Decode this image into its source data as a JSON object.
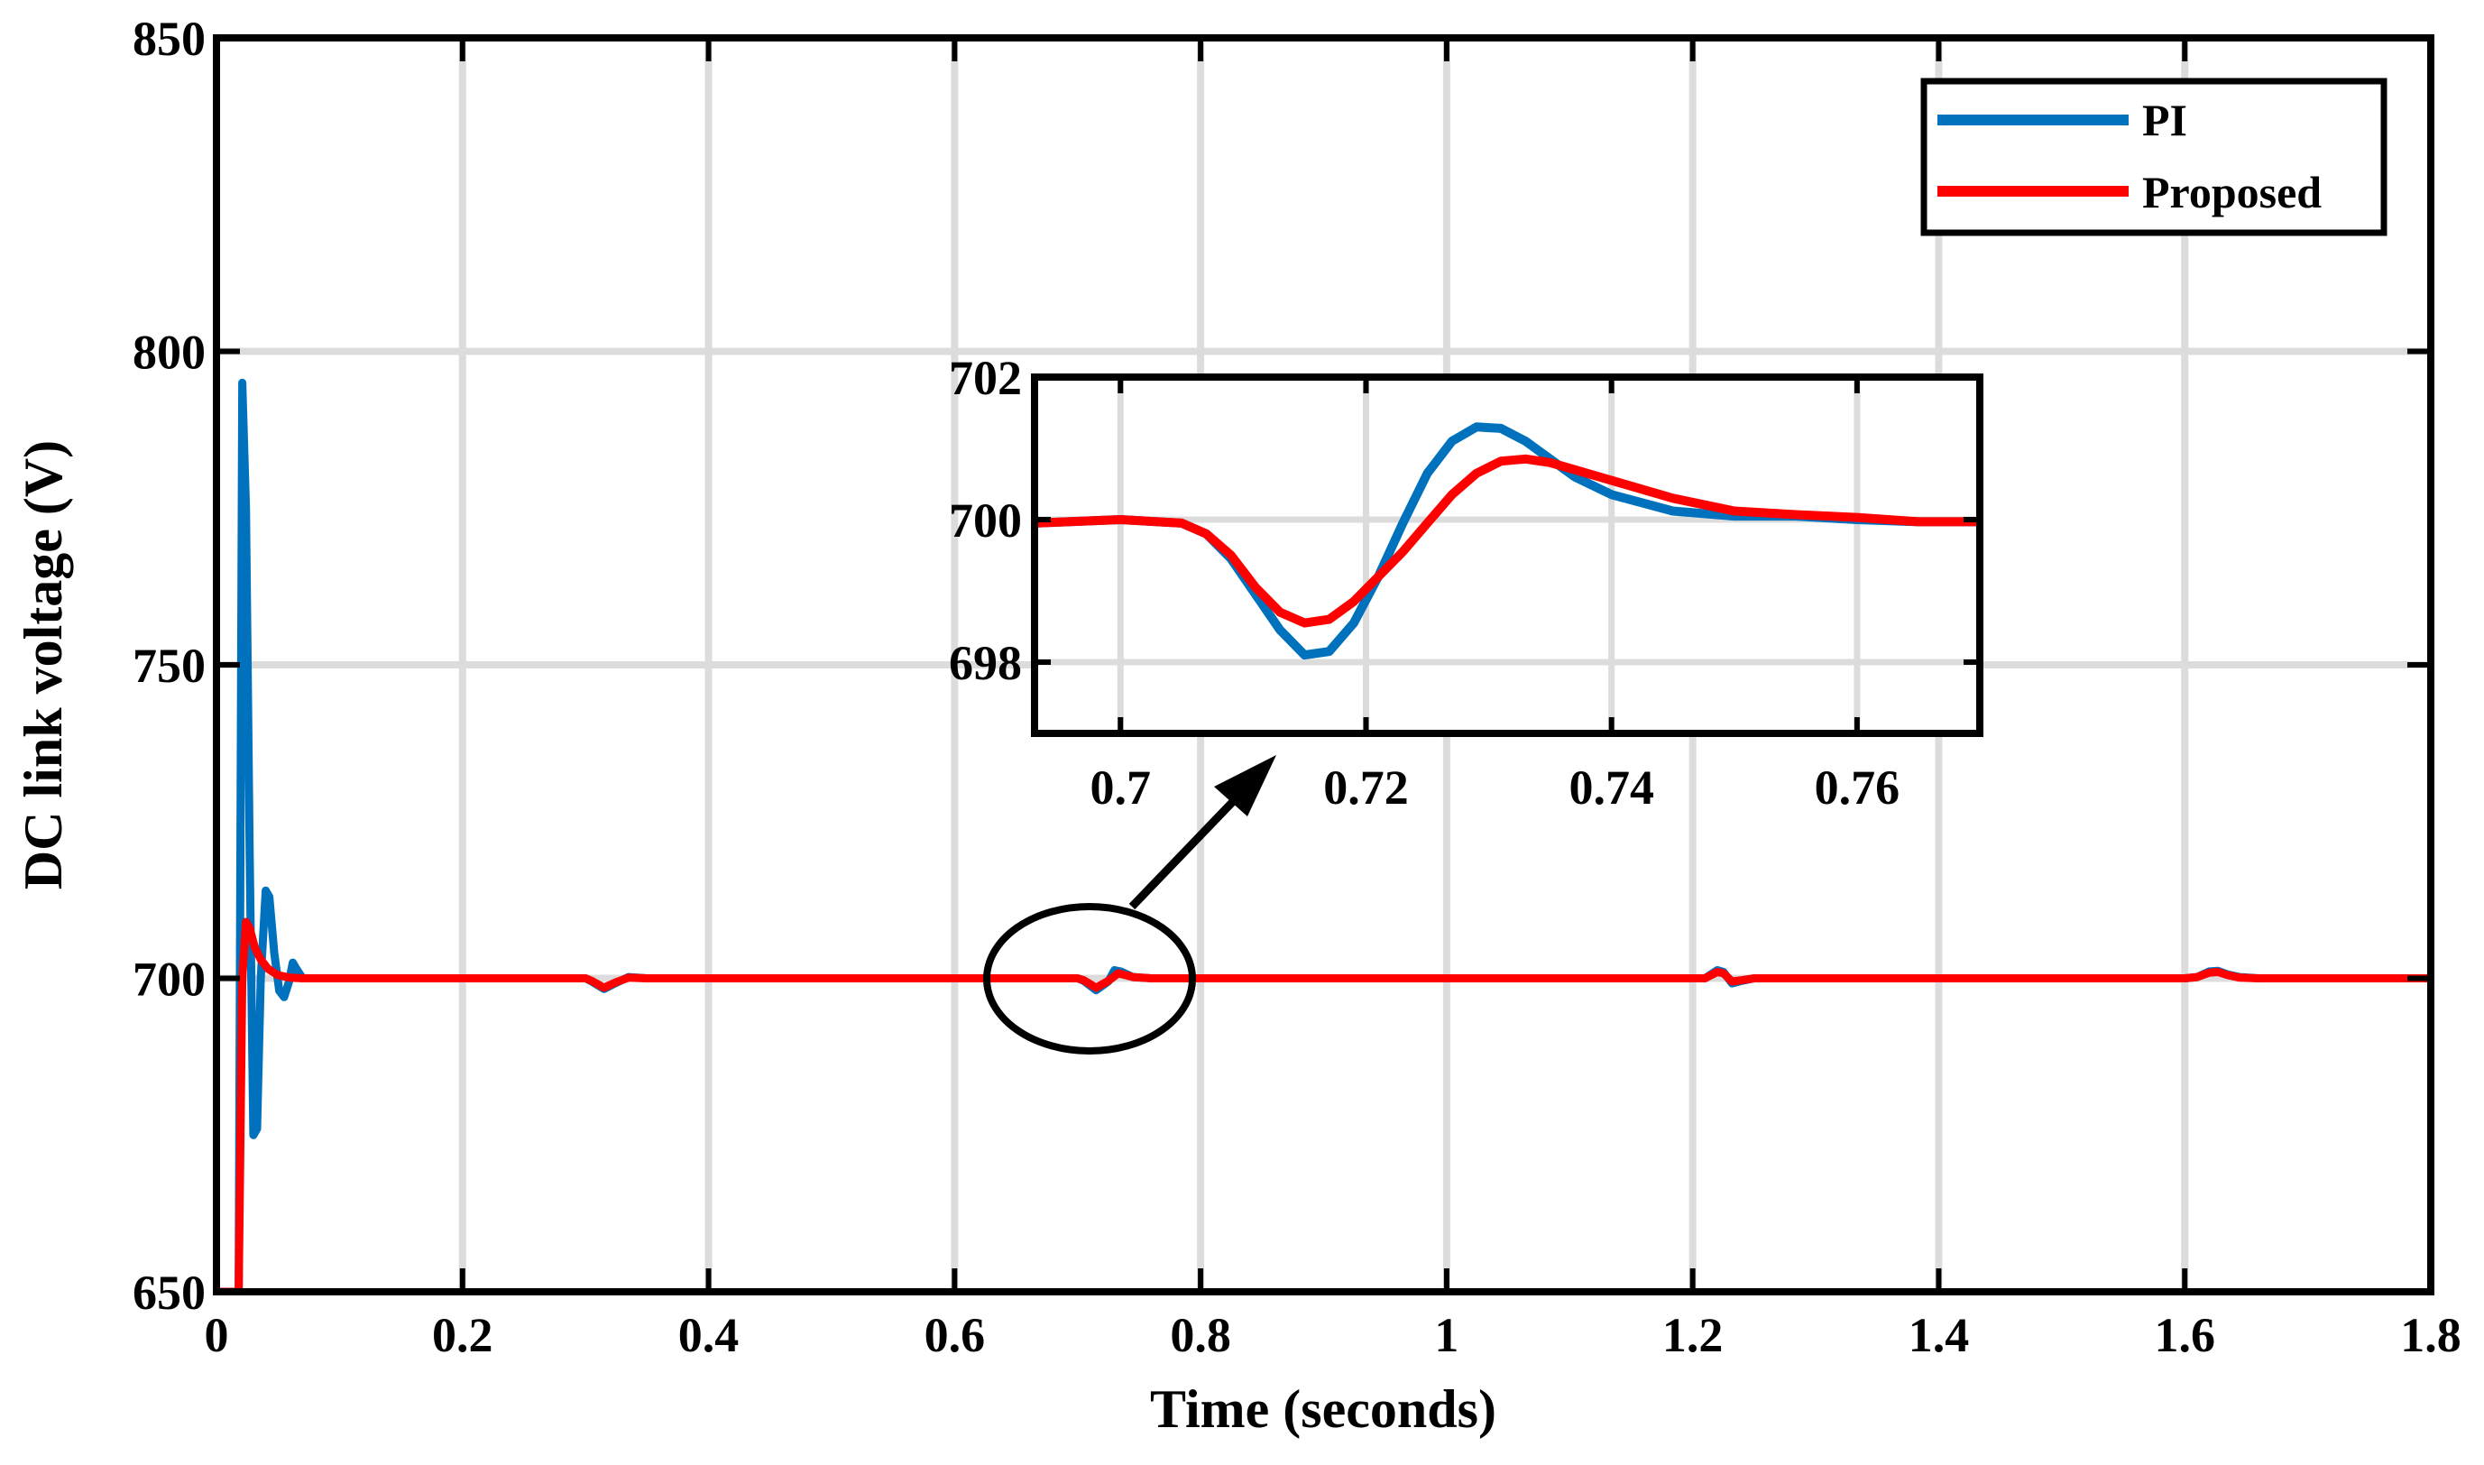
{
  "chart_data": [
    {
      "type": "line",
      "xlabel": "Time (seconds)",
      "ylabel": "DC link voltage (V)",
      "xlim": [
        0,
        1.8
      ],
      "ylim": [
        650,
        850
      ],
      "xticks": [
        0,
        0.2,
        0.4,
        0.6,
        0.8,
        1,
        1.2,
        1.4,
        1.6,
        1.8
      ],
      "xtick_labels": [
        "0",
        "0.2",
        "0.4",
        "0.6",
        "0.8",
        "1",
        "1.2",
        "1.4",
        "1.6",
        "1.8"
      ],
      "yticks": [
        650,
        700,
        750,
        800,
        850
      ],
      "ytick_labels": [
        "650",
        "700",
        "750",
        "800",
        "850"
      ],
      "grid": true,
      "legend_position": "top-right",
      "series": [
        {
          "name": "PI",
          "color": "#0072BD",
          "x": [
            0,
            0.018,
            0.021,
            0.024,
            0.027,
            0.03,
            0.033,
            0.036,
            0.04,
            0.043,
            0.047,
            0.051,
            0.055,
            0.059,
            0.062,
            0.065,
            0.07,
            0.08,
            0.3,
            0.305,
            0.315,
            0.325,
            0.335,
            0.35,
            0.7,
            0.705,
            0.715,
            0.725,
            0.73,
            0.735,
            0.745,
            0.76,
            1.21,
            1.22,
            1.225,
            1.232,
            1.24,
            1.25,
            1.6,
            1.61,
            1.62,
            1.627,
            1.635,
            1.645,
            1.66,
            1.8
          ],
          "y": [
            650,
            650,
            795,
            775,
            720,
            675,
            676,
            700,
            714,
            713,
            704,
            698,
            697,
            699.5,
            702.5,
            701.5,
            700,
            700,
            700,
            699.5,
            698.3,
            699.3,
            700.2,
            700,
            700,
            699.6,
            698.1,
            699.5,
            701.3,
            701.1,
            700.2,
            700,
            700,
            701.3,
            701.0,
            699.2,
            699.6,
            700,
            700,
            700.2,
            701.1,
            701.2,
            700.6,
            700.2,
            700,
            700
          ]
        },
        {
          "name": "Proposed",
          "color": "#FF0000",
          "x": [
            0,
            0.018,
            0.021,
            0.024,
            0.027,
            0.031,
            0.036,
            0.042,
            0.05,
            0.06,
            0.07,
            0.3,
            0.305,
            0.315,
            0.325,
            0.335,
            0.35,
            0.7,
            0.705,
            0.715,
            0.725,
            0.733,
            0.745,
            0.76,
            1.21,
            1.22,
            1.225,
            1.232,
            1.24,
            1.25,
            1.6,
            1.61,
            1.62,
            1.627,
            1.635,
            1.645,
            1.66,
            1.8
          ],
          "y": [
            650,
            650,
            700,
            709,
            708,
            705,
            703,
            701.5,
            700.5,
            700.1,
            700,
            700,
            699.6,
            698.5,
            699.4,
            700.1,
            700,
            700,
            699.7,
            698.5,
            699.6,
            700.8,
            700.2,
            700,
            700,
            701.0,
            700.8,
            699.5,
            699.7,
            700,
            700,
            700.2,
            700.9,
            701.0,
            700.5,
            700.1,
            700,
            700
          ]
        }
      ]
    },
    {
      "type": "line",
      "xlim": [
        0.693,
        0.77
      ],
      "ylim": [
        697,
        702
      ],
      "xticks": [
        0.7,
        0.72,
        0.74,
        0.76
      ],
      "xtick_labels": [
        "0.7",
        "0.72",
        "0.74",
        "0.76"
      ],
      "yticks": [
        698,
        700,
        702
      ],
      "ytick_labels": [
        "698",
        "700",
        "702"
      ],
      "grid": true,
      "series": [
        {
          "name": "PI",
          "color": "#0072BD",
          "x": [
            0.693,
            0.7,
            0.705,
            0.707,
            0.709,
            0.711,
            0.713,
            0.715,
            0.717,
            0.719,
            0.721,
            0.723,
            0.725,
            0.727,
            0.729,
            0.731,
            0.733,
            0.735,
            0.737,
            0.74,
            0.745,
            0.75,
            0.755,
            0.76,
            0.765,
            0.77
          ],
          "y": [
            699.95,
            700.0,
            699.95,
            699.8,
            699.45,
            698.95,
            698.45,
            698.1,
            698.15,
            698.55,
            699.2,
            699.95,
            700.65,
            701.1,
            701.3,
            701.28,
            701.1,
            700.85,
            700.6,
            700.35,
            700.12,
            700.05,
            700.05,
            700.0,
            699.97,
            699.97
          ]
        },
        {
          "name": "Proposed",
          "color": "#FF0000",
          "x": [
            0.693,
            0.7,
            0.705,
            0.707,
            0.709,
            0.711,
            0.713,
            0.715,
            0.717,
            0.719,
            0.721,
            0.723,
            0.725,
            0.727,
            0.729,
            0.731,
            0.733,
            0.735,
            0.737,
            0.74,
            0.745,
            0.75,
            0.755,
            0.76,
            0.765,
            0.77
          ],
          "y": [
            699.95,
            700.0,
            699.95,
            699.8,
            699.5,
            699.05,
            698.7,
            698.55,
            698.6,
            698.85,
            699.2,
            699.55,
            699.95,
            700.35,
            700.65,
            700.82,
            700.85,
            700.8,
            700.7,
            700.55,
            700.3,
            700.12,
            700.07,
            700.03,
            699.97,
            699.97
          ]
        }
      ]
    }
  ]
}
